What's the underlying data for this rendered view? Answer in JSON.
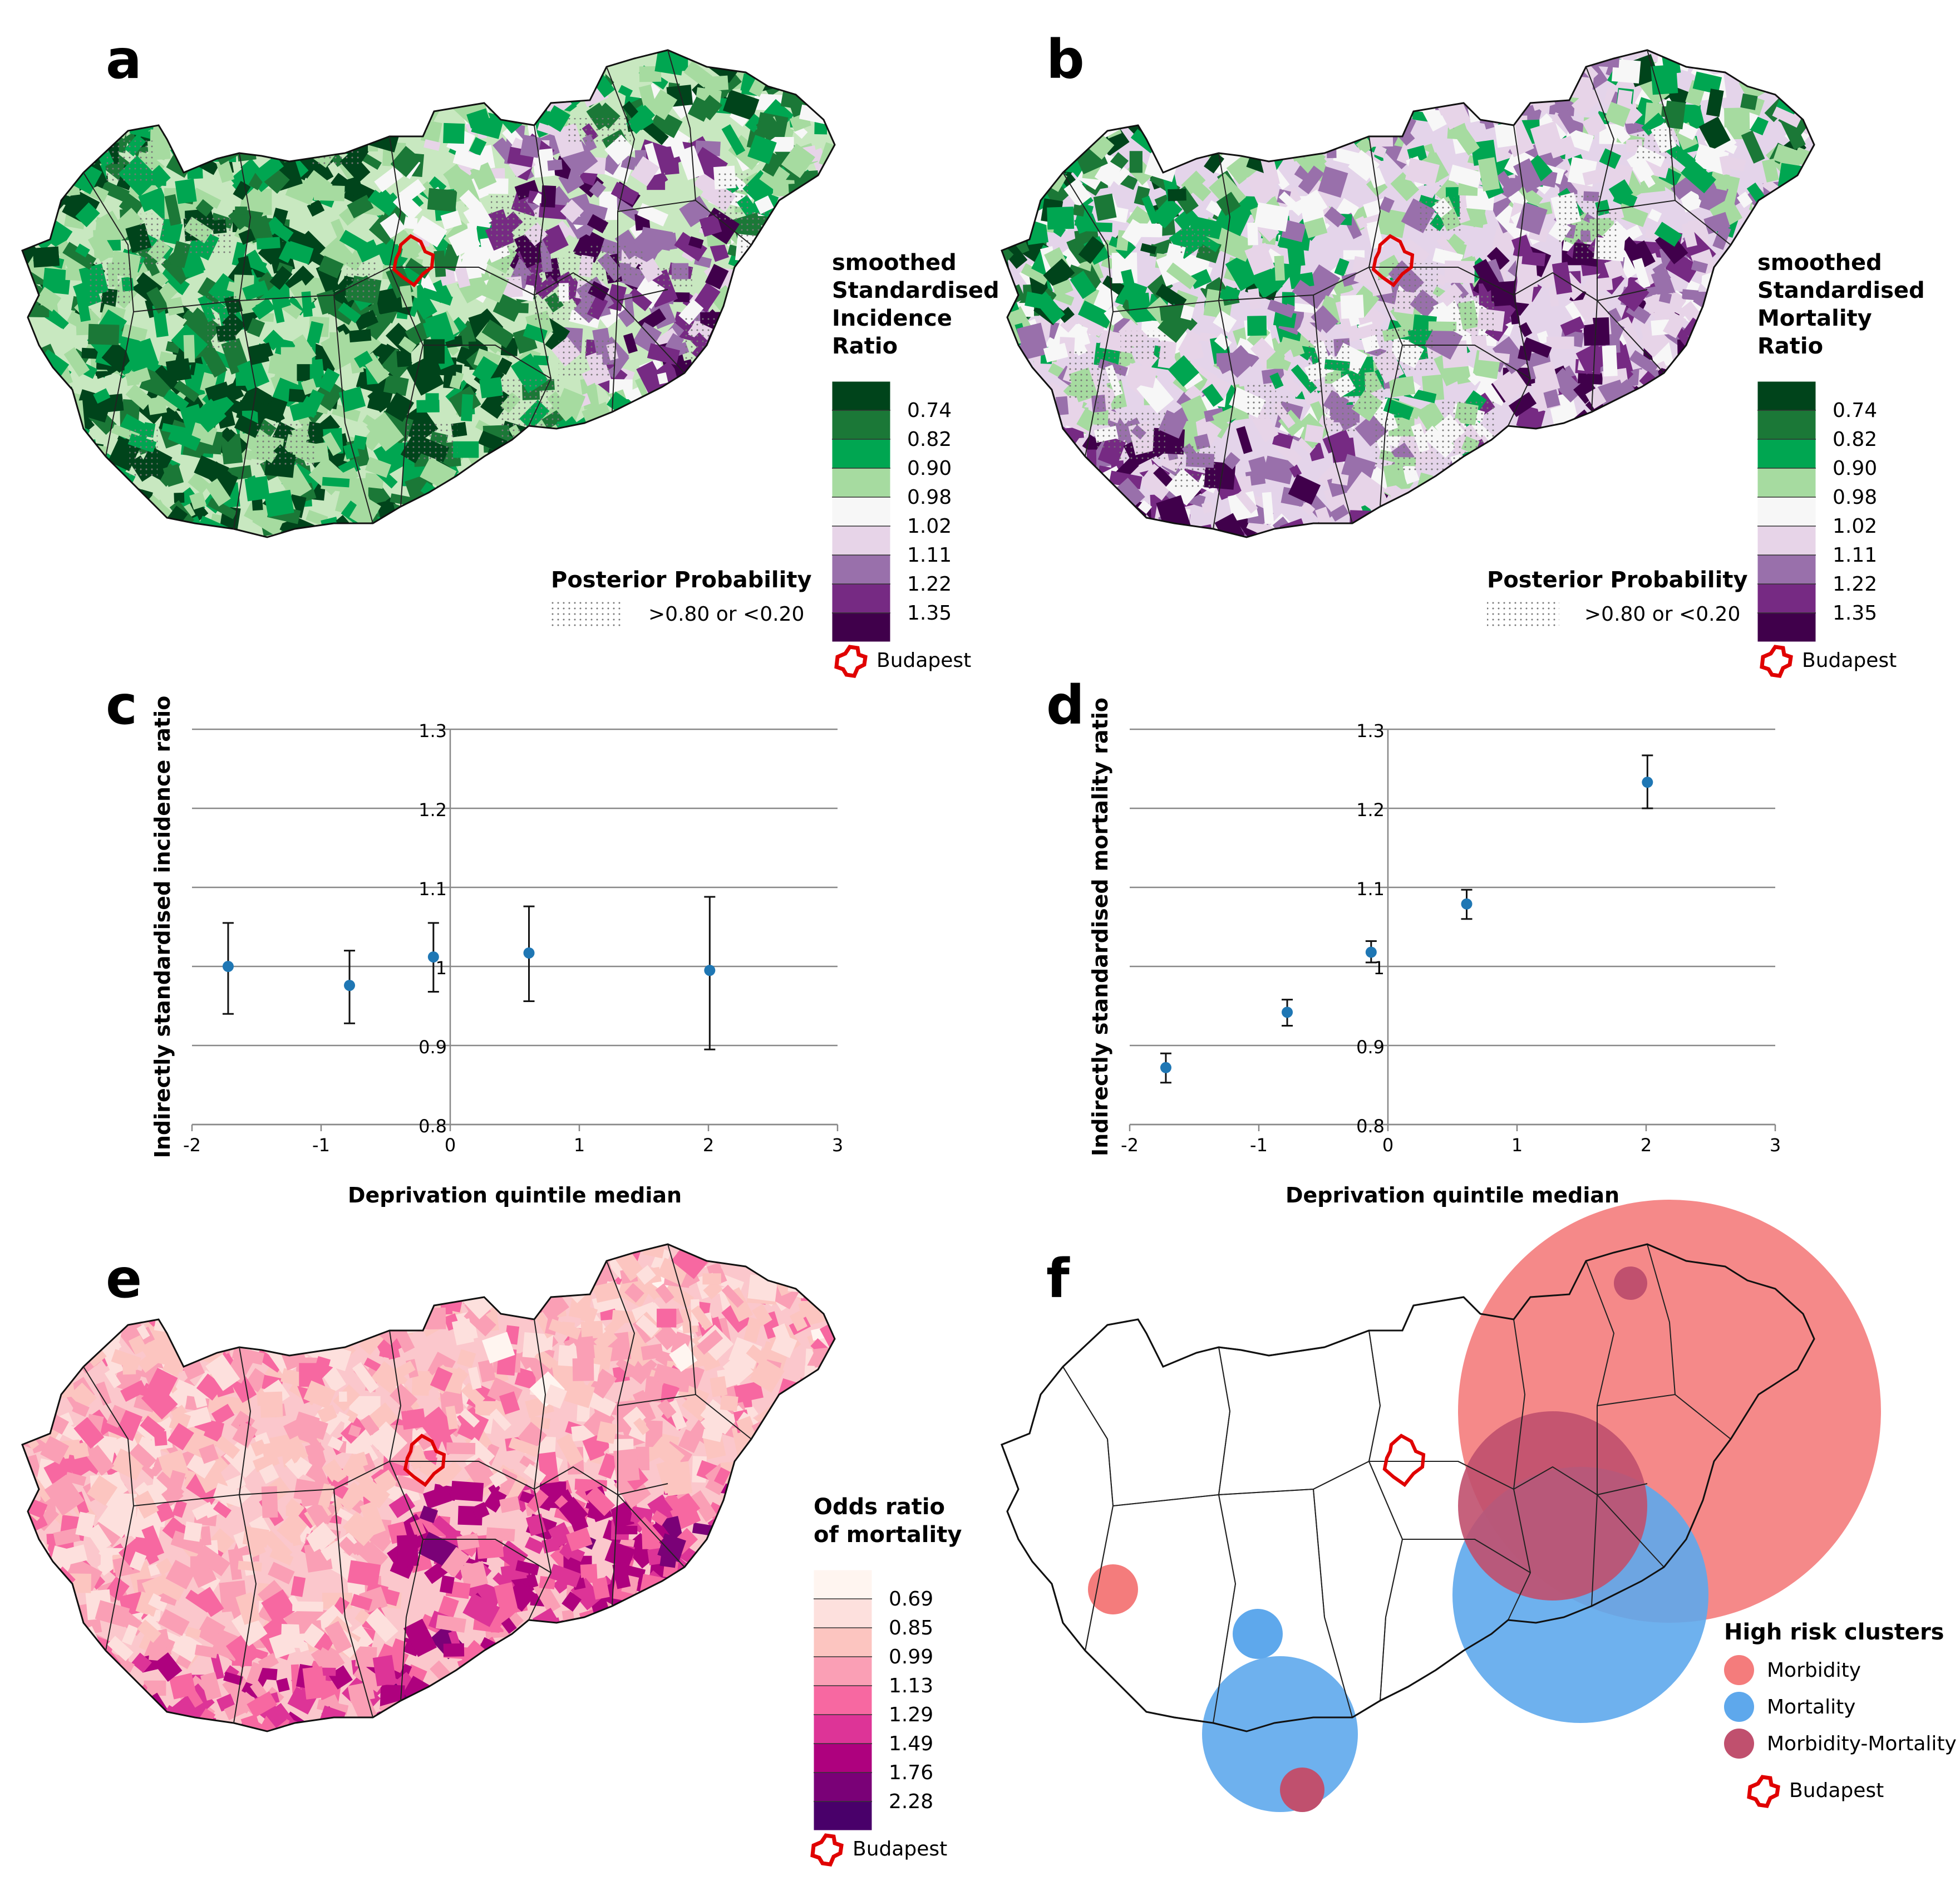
{
  "panels": {
    "a": {
      "letter": "a",
      "legend_title": [
        "smoothed",
        "Standardised",
        "Incidence",
        "Ratio"
      ],
      "legend_ticks": [
        "0.74",
        "0.82",
        "0.90",
        "0.98",
        "1.02",
        "1.11",
        "1.22",
        "1.35"
      ],
      "legend_colors": [
        "#00441b",
        "#1b7837",
        "#00a651",
        "#a6dba0",
        "#f7f7f7",
        "#e7d4e8",
        "#9970ab",
        "#762a83",
        "#40004b"
      ],
      "posterior_title": "Posterior Probability",
      "posterior_label": ">0.80 or <0.20",
      "budapest_label": "Budapest"
    },
    "b": {
      "letter": "b",
      "legend_title": [
        "smoothed",
        "Standardised",
        "Mortality",
        "Ratio"
      ],
      "legend_ticks": [
        "0.74",
        "0.82",
        "0.90",
        "0.98",
        "1.02",
        "1.11",
        "1.22",
        "1.35"
      ],
      "legend_colors": [
        "#00441b",
        "#1b7837",
        "#00a651",
        "#a6dba0",
        "#f7f7f7",
        "#e7d4e8",
        "#9970ab",
        "#762a83",
        "#40004b"
      ],
      "posterior_title": "Posterior Probability",
      "posterior_label": ">0.80 or <0.20",
      "budapest_label": "Budapest"
    },
    "e": {
      "letter": "e",
      "legend_title": [
        "Odds ratio",
        "of mortality"
      ],
      "legend_ticks": [
        "0.69",
        "0.85",
        "0.99",
        "1.13",
        "1.29",
        "1.49",
        "1.76",
        "2.28"
      ],
      "legend_colors": [
        "#fff5f0",
        "#fde0dd",
        "#fcc5c0",
        "#fa9fb5",
        "#f768a1",
        "#dd3497",
        "#ae017e",
        "#7a0177",
        "#49006a"
      ],
      "budapest_label": "Budapest"
    },
    "f": {
      "letter": "f",
      "legend_title": "High risk clusters",
      "items": [
        {
          "label": "Morbidity",
          "color": "#f47c7c"
        },
        {
          "label": "Mortality",
          "color": "#5ea8ec"
        },
        {
          "label": "Morbidity-Mortality",
          "color": "#c0506e"
        }
      ],
      "budapest_label": "Budapest"
    }
  },
  "chart_data": [
    {
      "panel": "c",
      "letter": "c",
      "type": "scatter",
      "xlabel": "Deprivation quintile median",
      "ylabel": "Indirectly standardised incidence ratio",
      "xlim": [
        -2,
        3
      ],
      "ylim": [
        0.8,
        1.3
      ],
      "x_ticks": [
        "-2",
        "-1",
        "0",
        "1",
        "2",
        "3"
      ],
      "y_ticks": [
        "0.8",
        "0.9",
        "1",
        "1.1",
        "1.2",
        "1.3"
      ],
      "grid": true,
      "points": [
        {
          "x": -1.72,
          "y": 1.0,
          "lo": 0.94,
          "hi": 1.055
        },
        {
          "x": -0.78,
          "y": 0.976,
          "lo": 0.928,
          "hi": 1.02
        },
        {
          "x": -0.13,
          "y": 1.012,
          "lo": 0.968,
          "hi": 1.055
        },
        {
          "x": 0.61,
          "y": 1.017,
          "lo": 0.956,
          "hi": 1.076
        },
        {
          "x": 2.01,
          "y": 0.995,
          "lo": 0.895,
          "hi": 1.088
        }
      ]
    },
    {
      "panel": "d",
      "letter": "d",
      "type": "scatter",
      "xlabel": "Deprivation quintile median",
      "ylabel": "Indirectly standardised mortality ratio",
      "xlim": [
        -2,
        3
      ],
      "ylim": [
        0.8,
        1.3
      ],
      "x_ticks": [
        "-2",
        "-1",
        "0",
        "1",
        "2",
        "3"
      ],
      "y_ticks": [
        "0.8",
        "0.9",
        "1",
        "1.1",
        "1.2",
        "1.3"
      ],
      "grid": true,
      "points": [
        {
          "x": -1.72,
          "y": 0.872,
          "lo": 0.853,
          "hi": 0.89
        },
        {
          "x": -0.78,
          "y": 0.942,
          "lo": 0.925,
          "hi": 0.958
        },
        {
          "x": -0.13,
          "y": 1.018,
          "lo": 1.005,
          "hi": 1.032
        },
        {
          "x": 0.61,
          "y": 1.079,
          "lo": 1.06,
          "hi": 1.097
        },
        {
          "x": 2.01,
          "y": 1.233,
          "lo": 1.2,
          "hi": 1.267
        }
      ]
    }
  ]
}
